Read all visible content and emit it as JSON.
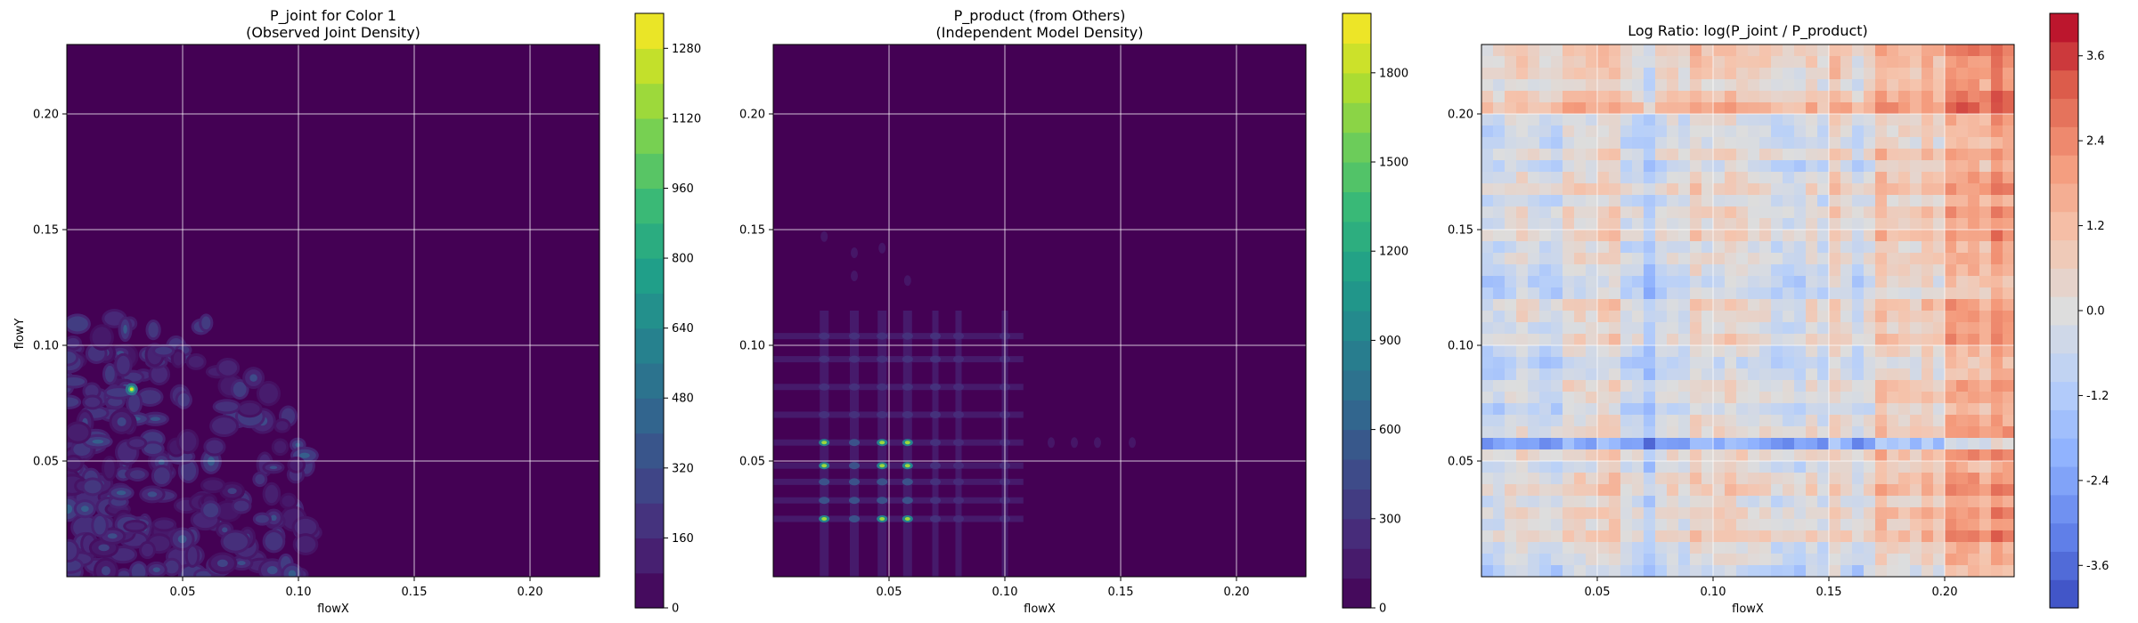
{
  "chart_data": [
    {
      "type": "heatmap",
      "title": "P_joint for Color 1\n(Observed Joint Density)",
      "xlabel": "flowX",
      "ylabel": "flowY",
      "xlim": [
        0.0,
        0.23
      ],
      "ylim": [
        0.0,
        0.23
      ],
      "xticks": [
        "0.05",
        "0.10",
        "0.15",
        "0.20"
      ],
      "yticks": [
        "0.05",
        "0.10",
        "0.15",
        "0.20"
      ],
      "grid": true,
      "colormap": "viridis",
      "background_color": "#440154",
      "colorbar": {
        "min": 0,
        "max": 1360,
        "ticks": [
          "0",
          "160",
          "320",
          "480",
          "640",
          "800",
          "960",
          "1120",
          "1280"
        ]
      },
      "peak": {
        "x": 0.028,
        "y": 0.081
      }
    },
    {
      "type": "heatmap",
      "title": "P_product (from Others)\n(Independent Model Density)",
      "xlabel": "flowX",
      "ylabel": "",
      "xlim": [
        0.0,
        0.23
      ],
      "ylim": [
        0.0,
        0.23
      ],
      "xticks": [
        "0.05",
        "0.10",
        "0.15",
        "0.20"
      ],
      "yticks": [
        "0.05",
        "0.10",
        "0.15",
        "0.20"
      ],
      "grid": true,
      "colormap": "viridis",
      "background_color": "#440154",
      "colorbar": {
        "min": 0,
        "max": 2000,
        "ticks": [
          "0",
          "300",
          "600",
          "900",
          "1200",
          "1500",
          "1800"
        ]
      },
      "marginal_x_peaks": [
        0.022,
        0.035,
        0.047,
        0.058,
        0.07,
        0.08,
        0.1
      ],
      "marginal_y_peaks": [
        0.025,
        0.033,
        0.041,
        0.048,
        0.058,
        0.07,
        0.082,
        0.094,
        0.104
      ],
      "peak": {
        "x": 0.058,
        "y": 0.058
      }
    },
    {
      "type": "heatmap",
      "title": "Log Ratio: log(P_joint / P_product)",
      "xlabel": "flowX",
      "ylabel": "",
      "xlim": [
        0.0,
        0.23
      ],
      "ylim": [
        0.0,
        0.23
      ],
      "xticks": [
        "0.05",
        "0.10",
        "0.15",
        "0.20"
      ],
      "yticks": [
        "0.05",
        "0.10",
        "0.15",
        "0.20"
      ],
      "grid": true,
      "colormap": "coolwarm",
      "colorbar": {
        "min": -4.2,
        "max": 4.2,
        "ticks": [
          "-3.6",
          "-2.4",
          "-1.2",
          "0.0",
          "1.2",
          "2.4",
          "3.6"
        ]
      }
    }
  ]
}
